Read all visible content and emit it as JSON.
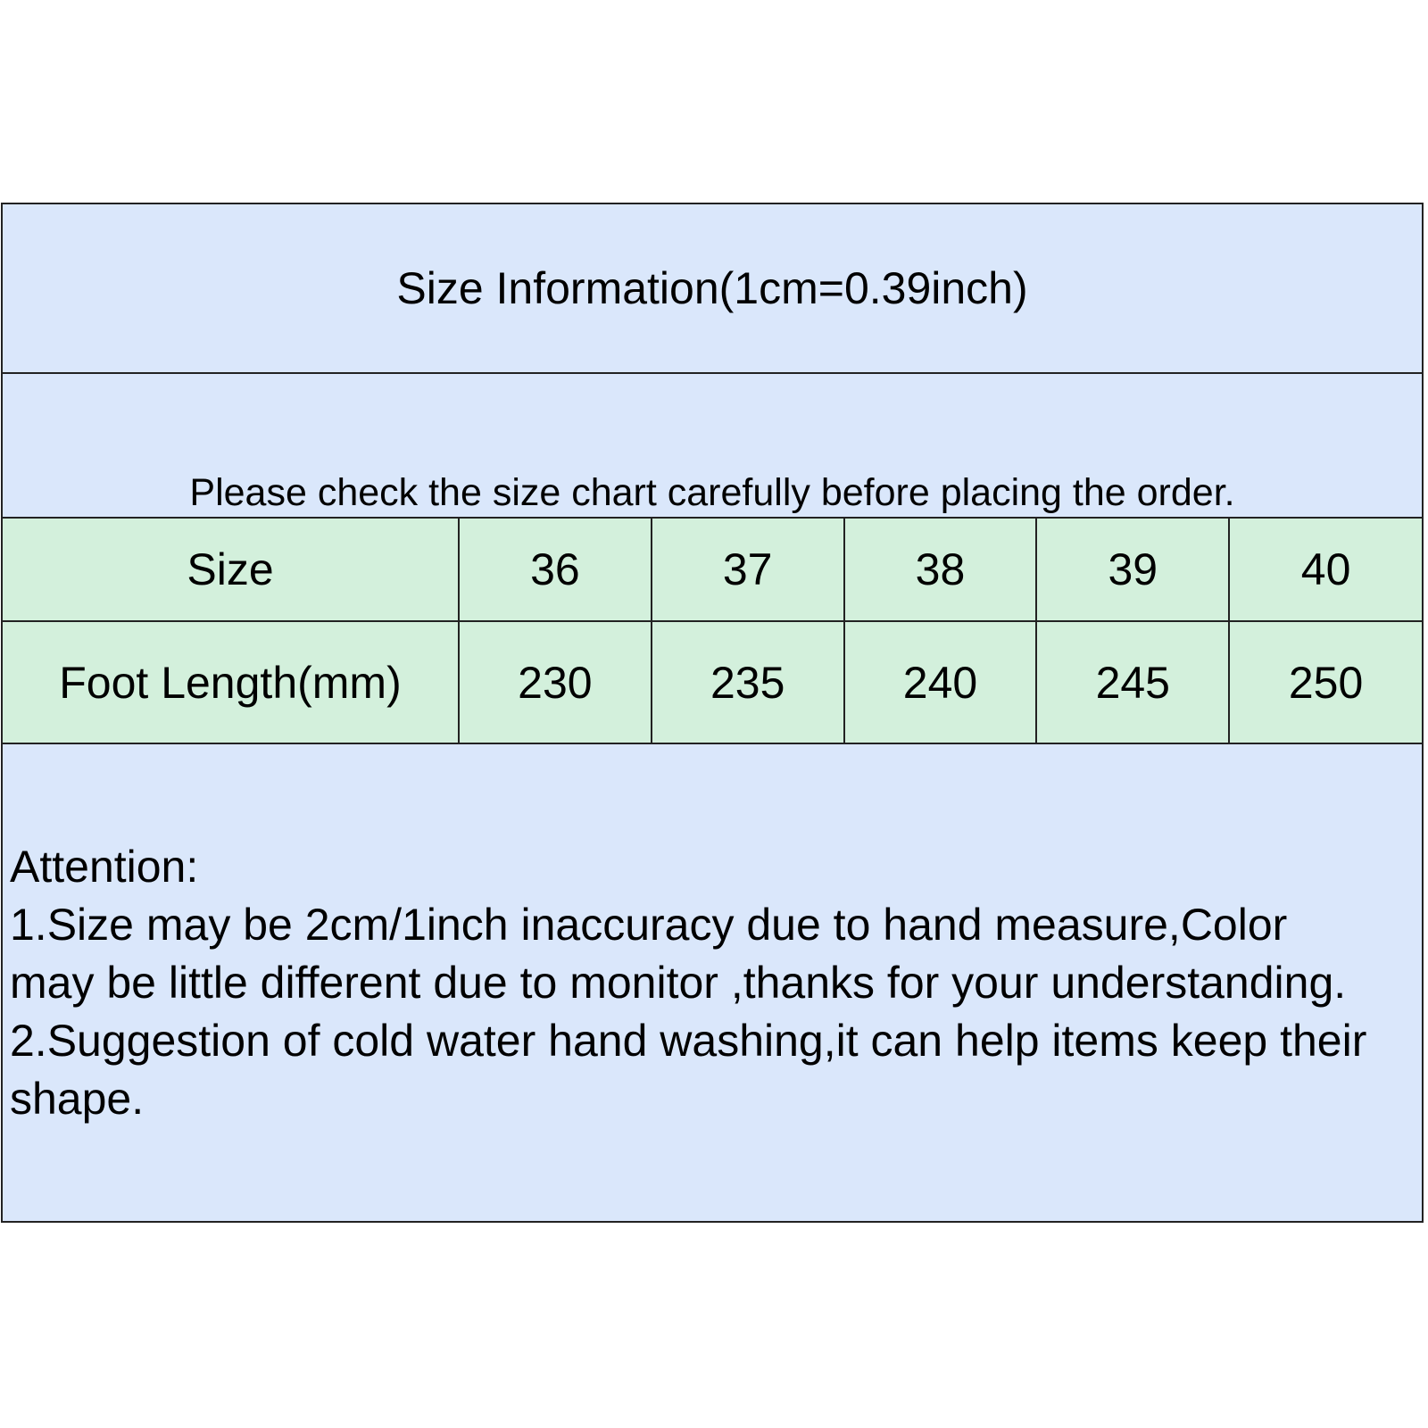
{
  "title": "Size Information(1cm=0.39inch)",
  "note": "Please check the size chart carefully before placing the order.",
  "table": {
    "rows": [
      {
        "label": "Size",
        "values": [
          "36",
          "37",
          "38",
          "39",
          "40"
        ]
      },
      {
        "label": "Foot Length(mm)",
        "values": [
          "230",
          "235",
          "240",
          "245",
          "250"
        ]
      }
    ]
  },
  "attention": {
    "heading": "Attention:",
    "lines": [
      "1.Size may be 2cm/1inch inaccuracy due to hand measure,Color",
      "may be little different due to monitor ,thanks for your understanding.",
      "2.Suggestion of cold water hand washing,it can help items keep their",
      "shape."
    ]
  },
  "colors": {
    "header_bg": "#dae7fb",
    "table_bg": "#d3f0dc",
    "border": "#222222"
  }
}
